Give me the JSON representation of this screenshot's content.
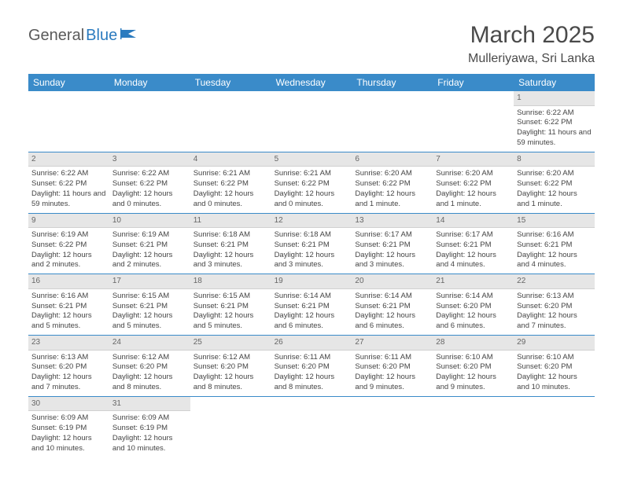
{
  "brand": {
    "part1": "General",
    "part2": "Blue"
  },
  "title": "March 2025",
  "location": "Mulleriyawa, Sri Lanka",
  "colors": {
    "header_bg": "#3a8bc9",
    "header_text": "#ffffff",
    "daynum_bg": "#e6e6e6",
    "row_border": "#3a8bc9",
    "body_text": "#444444",
    "brand_gray": "#5a5a5a",
    "brand_blue": "#2b7bbf",
    "title_color": "#4a4a4a"
  },
  "weekdays": [
    "Sunday",
    "Monday",
    "Tuesday",
    "Wednesday",
    "Thursday",
    "Friday",
    "Saturday"
  ],
  "weeks": [
    [
      {
        "n": "",
        "sr": "",
        "ss": "",
        "dl": ""
      },
      {
        "n": "",
        "sr": "",
        "ss": "",
        "dl": ""
      },
      {
        "n": "",
        "sr": "",
        "ss": "",
        "dl": ""
      },
      {
        "n": "",
        "sr": "",
        "ss": "",
        "dl": ""
      },
      {
        "n": "",
        "sr": "",
        "ss": "",
        "dl": ""
      },
      {
        "n": "",
        "sr": "",
        "ss": "",
        "dl": ""
      },
      {
        "n": "1",
        "sr": "Sunrise: 6:22 AM",
        "ss": "Sunset: 6:22 PM",
        "dl": "Daylight: 11 hours and 59 minutes."
      }
    ],
    [
      {
        "n": "2",
        "sr": "Sunrise: 6:22 AM",
        "ss": "Sunset: 6:22 PM",
        "dl": "Daylight: 11 hours and 59 minutes."
      },
      {
        "n": "3",
        "sr": "Sunrise: 6:22 AM",
        "ss": "Sunset: 6:22 PM",
        "dl": "Daylight: 12 hours and 0 minutes."
      },
      {
        "n": "4",
        "sr": "Sunrise: 6:21 AM",
        "ss": "Sunset: 6:22 PM",
        "dl": "Daylight: 12 hours and 0 minutes."
      },
      {
        "n": "5",
        "sr": "Sunrise: 6:21 AM",
        "ss": "Sunset: 6:22 PM",
        "dl": "Daylight: 12 hours and 0 minutes."
      },
      {
        "n": "6",
        "sr": "Sunrise: 6:20 AM",
        "ss": "Sunset: 6:22 PM",
        "dl": "Daylight: 12 hours and 1 minute."
      },
      {
        "n": "7",
        "sr": "Sunrise: 6:20 AM",
        "ss": "Sunset: 6:22 PM",
        "dl": "Daylight: 12 hours and 1 minute."
      },
      {
        "n": "8",
        "sr": "Sunrise: 6:20 AM",
        "ss": "Sunset: 6:22 PM",
        "dl": "Daylight: 12 hours and 1 minute."
      }
    ],
    [
      {
        "n": "9",
        "sr": "Sunrise: 6:19 AM",
        "ss": "Sunset: 6:22 PM",
        "dl": "Daylight: 12 hours and 2 minutes."
      },
      {
        "n": "10",
        "sr": "Sunrise: 6:19 AM",
        "ss": "Sunset: 6:21 PM",
        "dl": "Daylight: 12 hours and 2 minutes."
      },
      {
        "n": "11",
        "sr": "Sunrise: 6:18 AM",
        "ss": "Sunset: 6:21 PM",
        "dl": "Daylight: 12 hours and 3 minutes."
      },
      {
        "n": "12",
        "sr": "Sunrise: 6:18 AM",
        "ss": "Sunset: 6:21 PM",
        "dl": "Daylight: 12 hours and 3 minutes."
      },
      {
        "n": "13",
        "sr": "Sunrise: 6:17 AM",
        "ss": "Sunset: 6:21 PM",
        "dl": "Daylight: 12 hours and 3 minutes."
      },
      {
        "n": "14",
        "sr": "Sunrise: 6:17 AM",
        "ss": "Sunset: 6:21 PM",
        "dl": "Daylight: 12 hours and 4 minutes."
      },
      {
        "n": "15",
        "sr": "Sunrise: 6:16 AM",
        "ss": "Sunset: 6:21 PM",
        "dl": "Daylight: 12 hours and 4 minutes."
      }
    ],
    [
      {
        "n": "16",
        "sr": "Sunrise: 6:16 AM",
        "ss": "Sunset: 6:21 PM",
        "dl": "Daylight: 12 hours and 5 minutes."
      },
      {
        "n": "17",
        "sr": "Sunrise: 6:15 AM",
        "ss": "Sunset: 6:21 PM",
        "dl": "Daylight: 12 hours and 5 minutes."
      },
      {
        "n": "18",
        "sr": "Sunrise: 6:15 AM",
        "ss": "Sunset: 6:21 PM",
        "dl": "Daylight: 12 hours and 5 minutes."
      },
      {
        "n": "19",
        "sr": "Sunrise: 6:14 AM",
        "ss": "Sunset: 6:21 PM",
        "dl": "Daylight: 12 hours and 6 minutes."
      },
      {
        "n": "20",
        "sr": "Sunrise: 6:14 AM",
        "ss": "Sunset: 6:21 PM",
        "dl": "Daylight: 12 hours and 6 minutes."
      },
      {
        "n": "21",
        "sr": "Sunrise: 6:14 AM",
        "ss": "Sunset: 6:20 PM",
        "dl": "Daylight: 12 hours and 6 minutes."
      },
      {
        "n": "22",
        "sr": "Sunrise: 6:13 AM",
        "ss": "Sunset: 6:20 PM",
        "dl": "Daylight: 12 hours and 7 minutes."
      }
    ],
    [
      {
        "n": "23",
        "sr": "Sunrise: 6:13 AM",
        "ss": "Sunset: 6:20 PM",
        "dl": "Daylight: 12 hours and 7 minutes."
      },
      {
        "n": "24",
        "sr": "Sunrise: 6:12 AM",
        "ss": "Sunset: 6:20 PM",
        "dl": "Daylight: 12 hours and 8 minutes."
      },
      {
        "n": "25",
        "sr": "Sunrise: 6:12 AM",
        "ss": "Sunset: 6:20 PM",
        "dl": "Daylight: 12 hours and 8 minutes."
      },
      {
        "n": "26",
        "sr": "Sunrise: 6:11 AM",
        "ss": "Sunset: 6:20 PM",
        "dl": "Daylight: 12 hours and 8 minutes."
      },
      {
        "n": "27",
        "sr": "Sunrise: 6:11 AM",
        "ss": "Sunset: 6:20 PM",
        "dl": "Daylight: 12 hours and 9 minutes."
      },
      {
        "n": "28",
        "sr": "Sunrise: 6:10 AM",
        "ss": "Sunset: 6:20 PM",
        "dl": "Daylight: 12 hours and 9 minutes."
      },
      {
        "n": "29",
        "sr": "Sunrise: 6:10 AM",
        "ss": "Sunset: 6:20 PM",
        "dl": "Daylight: 12 hours and 10 minutes."
      }
    ],
    [
      {
        "n": "30",
        "sr": "Sunrise: 6:09 AM",
        "ss": "Sunset: 6:19 PM",
        "dl": "Daylight: 12 hours and 10 minutes."
      },
      {
        "n": "31",
        "sr": "Sunrise: 6:09 AM",
        "ss": "Sunset: 6:19 PM",
        "dl": "Daylight: 12 hours and 10 minutes."
      },
      {
        "n": "",
        "sr": "",
        "ss": "",
        "dl": ""
      },
      {
        "n": "",
        "sr": "",
        "ss": "",
        "dl": ""
      },
      {
        "n": "",
        "sr": "",
        "ss": "",
        "dl": ""
      },
      {
        "n": "",
        "sr": "",
        "ss": "",
        "dl": ""
      },
      {
        "n": "",
        "sr": "",
        "ss": "",
        "dl": ""
      }
    ]
  ]
}
